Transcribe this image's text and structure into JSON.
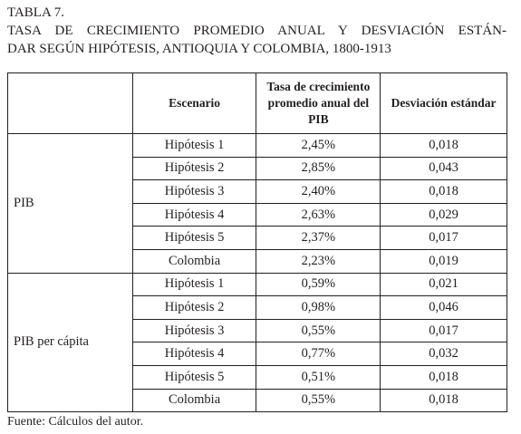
{
  "table_label": "TABLA 7.",
  "title_line1": "TASA DE CRECIMIENTO PROMEDIO ANUAL Y DESVIACIÓN ESTÁN-",
  "title_line2": "DAR SEGÚN HIPÓTESIS, ANTIOQUIA Y COLOMBIA, 1800-1913",
  "headers": {
    "group": "",
    "escenario": "Escenario",
    "tasa": "Tasa de crecimiento promedio anual del PIB",
    "desviacion": "Desviación estándar"
  },
  "groups": [
    {
      "label": "PIB",
      "rows": [
        {
          "escenario": "Hipótesis 1",
          "tasa": "2,45%",
          "desviacion": "0,018"
        },
        {
          "escenario": "Hipótesis 2",
          "tasa": "2,85%",
          "desviacion": "0,043"
        },
        {
          "escenario": "Hipótesis 3",
          "tasa": "2,40%",
          "desviacion": "0,018"
        },
        {
          "escenario": "Hipótesis 4",
          "tasa": "2,63%",
          "desviacion": "0,029"
        },
        {
          "escenario": "Hipótesis 5",
          "tasa": "2,37%",
          "desviacion": "0,017"
        },
        {
          "escenario": "Colombia",
          "tasa": "2,23%",
          "desviacion": "0,019"
        }
      ]
    },
    {
      "label": "PIB per cápita",
      "rows": [
        {
          "escenario": "Hipótesis 1",
          "tasa": "0,59%",
          "desviacion": "0,021"
        },
        {
          "escenario": "Hipótesis 2",
          "tasa": "0,98%",
          "desviacion": "0,046"
        },
        {
          "escenario": "Hipótesis 3",
          "tasa": "0,55%",
          "desviacion": "0,017"
        },
        {
          "escenario": "Hipótesis 4",
          "tasa": "0,77%",
          "desviacion": "0,032"
        },
        {
          "escenario": "Hipótesis 5",
          "tasa": "0,51%",
          "desviacion": "0,018"
        },
        {
          "escenario": "Colombia",
          "tasa": "0,55%",
          "desviacion": "0,018"
        }
      ]
    }
  ],
  "footnote": "Fuente: Cálculos del autor."
}
